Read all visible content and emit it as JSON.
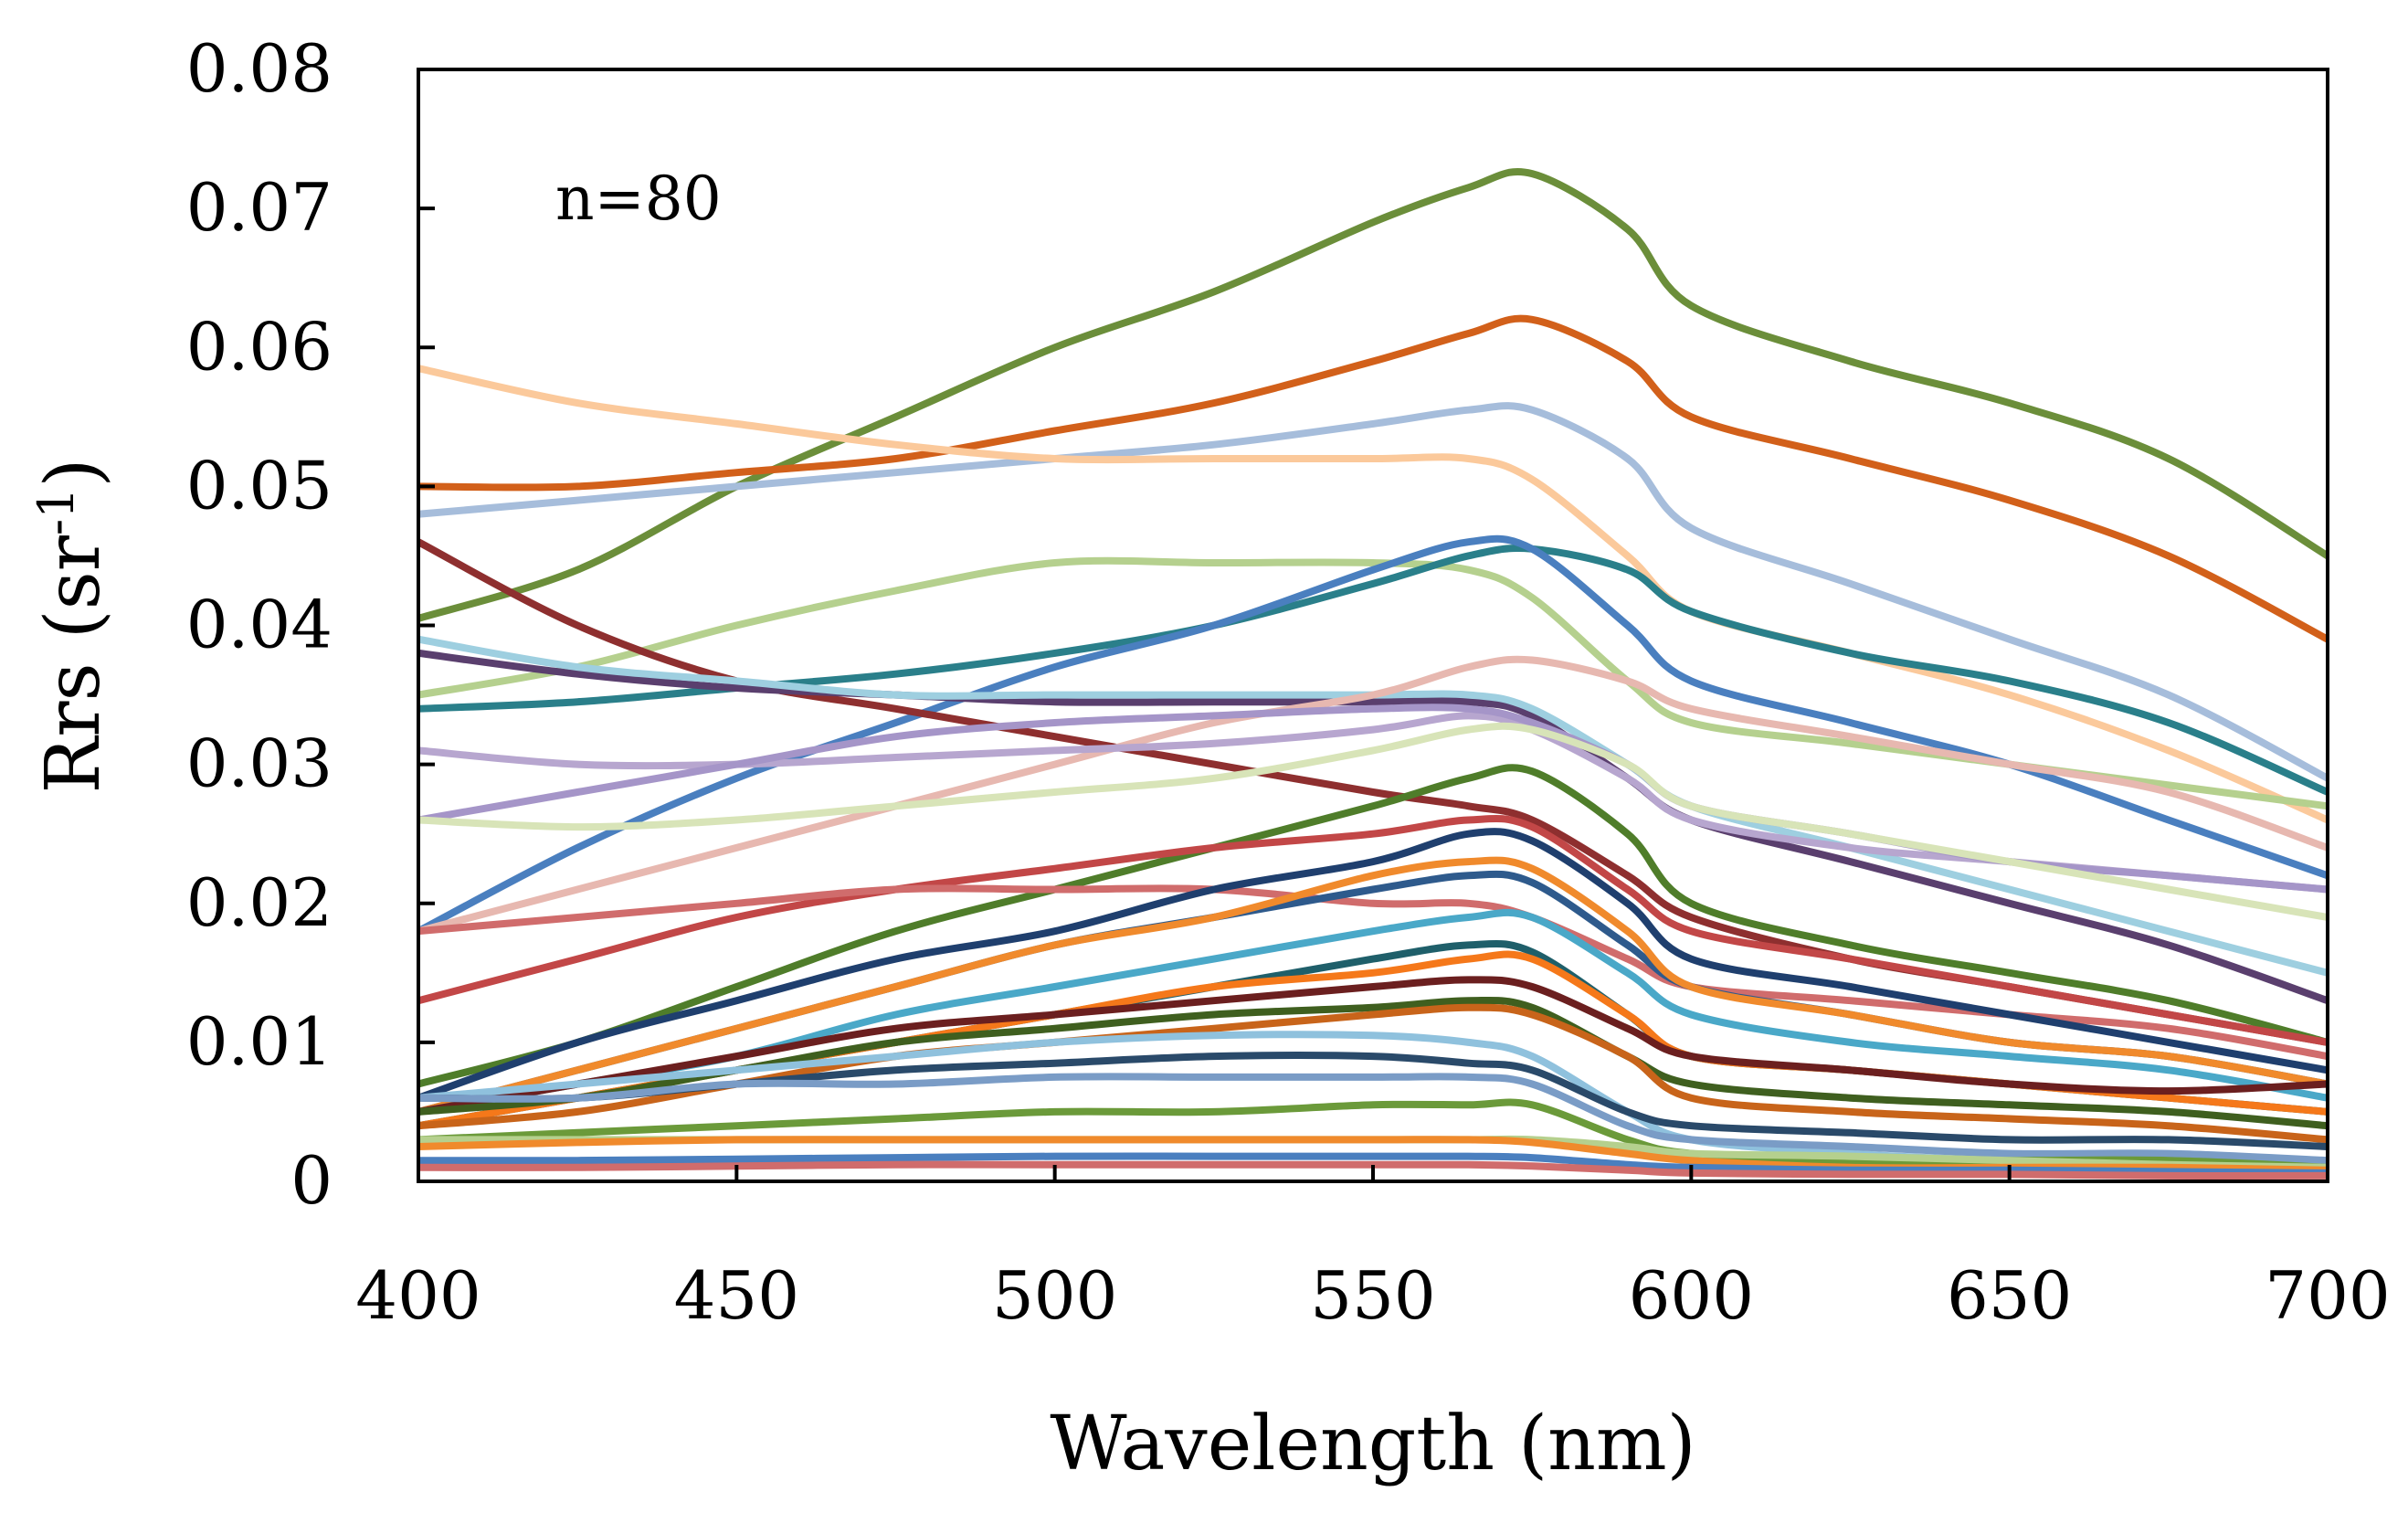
{
  "chart_data": {
    "type": "line",
    "title": "",
    "xlabel": "Wavelength (nm)",
    "ylabel_main": "Rrs (sr",
    "ylabel_sup": "-1",
    "ylabel_close": ")",
    "xlim": [
      400,
      700
    ],
    "ylim": [
      0,
      0.08
    ],
    "grid": false,
    "legend": "none",
    "annotation": "n=80",
    "x_ticks": [
      "400",
      "450",
      "500",
      "550",
      "600",
      "650",
      "700"
    ],
    "y_ticks": [
      "0",
      "0.01",
      "0.02",
      "0.03",
      "0.04",
      "0.05",
      "0.06",
      "0.07",
      "0.08"
    ],
    "x": [
      400,
      425,
      450,
      475,
      500,
      525,
      550,
      565,
      575,
      590,
      600,
      625,
      650,
      675,
      700
    ],
    "series": [
      {
        "color": "#6b8e3a",
        "values": [
          0.0405,
          0.044,
          0.05,
          0.055,
          0.06,
          0.064,
          0.069,
          0.0715,
          0.0725,
          0.0685,
          0.063,
          0.059,
          0.056,
          0.052,
          0.045
        ]
      },
      {
        "color": "#d2601a",
        "values": [
          0.05,
          0.05,
          0.051,
          0.052,
          0.054,
          0.056,
          0.059,
          0.061,
          0.062,
          0.059,
          0.055,
          0.052,
          0.049,
          0.045,
          0.039
        ]
      },
      {
        "color": "#a6bddb",
        "values": [
          0.048,
          0.049,
          0.05,
          0.051,
          0.052,
          0.053,
          0.0545,
          0.0555,
          0.0555,
          0.052,
          0.047,
          0.043,
          0.039,
          0.035,
          0.029
        ]
      },
      {
        "color": "#fbc99b",
        "values": [
          0.0585,
          0.056,
          0.0545,
          0.053,
          0.052,
          0.052,
          0.052,
          0.052,
          0.0505,
          0.045,
          0.041,
          0.038,
          0.035,
          0.031,
          0.026
        ]
      },
      {
        "color": "#b5d08e",
        "values": [
          0.035,
          0.037,
          0.04,
          0.0425,
          0.0445,
          0.0445,
          0.0445,
          0.044,
          0.042,
          0.036,
          0.033,
          0.0315,
          0.03,
          0.0285,
          0.027
        ]
      },
      {
        "color": "#2a7f8a",
        "values": [
          0.034,
          0.0345,
          0.0355,
          0.0365,
          0.038,
          0.04,
          0.043,
          0.045,
          0.0455,
          0.044,
          0.041,
          0.038,
          0.036,
          0.033,
          0.028
        ]
      },
      {
        "color": "#4a7fbf",
        "values": [
          0.018,
          0.024,
          0.029,
          0.033,
          0.037,
          0.04,
          0.044,
          0.046,
          0.0455,
          0.04,
          0.036,
          0.033,
          0.03,
          0.026,
          0.022
        ]
      },
      {
        "color": "#8e2f2f",
        "values": [
          0.046,
          0.04,
          0.036,
          0.034,
          0.032,
          0.03,
          0.028,
          0.027,
          0.026,
          0.022,
          0.019,
          0.016,
          0.014,
          0.012,
          0.01
        ]
      },
      {
        "color": "#5a3f6e",
        "values": [
          0.038,
          0.0365,
          0.0355,
          0.035,
          0.0345,
          0.0345,
          0.0345,
          0.0345,
          0.0335,
          0.029,
          0.026,
          0.023,
          0.02,
          0.017,
          0.013
        ]
      },
      {
        "color": "#9ecfe0",
        "values": [
          0.039,
          0.037,
          0.036,
          0.035,
          0.035,
          0.035,
          0.035,
          0.035,
          0.034,
          0.03,
          0.027,
          0.024,
          0.021,
          0.018,
          0.015
        ]
      },
      {
        "color": "#e7b8b0",
        "values": [
          0.018,
          0.021,
          0.024,
          0.027,
          0.03,
          0.033,
          0.035,
          0.037,
          0.0375,
          0.036,
          0.034,
          0.032,
          0.03,
          0.028,
          0.024
        ]
      },
      {
        "color": "#b7a6cf",
        "values": [
          0.031,
          0.03,
          0.03,
          0.0305,
          0.031,
          0.0315,
          0.0325,
          0.0335,
          0.0325,
          0.029,
          0.026,
          0.024,
          0.023,
          0.022,
          0.021
        ]
      },
      {
        "color": "#a595c8",
        "values": [
          0.026,
          0.028,
          0.03,
          0.032,
          0.033,
          0.0335,
          0.034,
          0.034,
          0.033,
          0.03,
          0.027,
          0.025,
          0.023,
          0.022,
          0.021
        ]
      },
      {
        "color": "#d8e4b8",
        "values": [
          0.026,
          0.0255,
          0.026,
          0.027,
          0.028,
          0.029,
          0.031,
          0.0325,
          0.0325,
          0.03,
          0.027,
          0.025,
          0.023,
          0.021,
          0.019
        ]
      },
      {
        "color": "#4f7d2a",
        "values": [
          0.007,
          0.01,
          0.014,
          0.018,
          0.021,
          0.024,
          0.027,
          0.029,
          0.0295,
          0.025,
          0.02,
          0.017,
          0.015,
          0.013,
          0.01
        ]
      },
      {
        "color": "#c24747",
        "values": [
          0.013,
          0.016,
          0.019,
          0.021,
          0.0225,
          0.024,
          0.025,
          0.026,
          0.0255,
          0.021,
          0.018,
          0.016,
          0.014,
          0.012,
          0.01
        ]
      },
      {
        "color": "#d06c6c",
        "values": [
          0.018,
          0.019,
          0.02,
          0.021,
          0.021,
          0.021,
          0.02,
          0.02,
          0.019,
          0.016,
          0.014,
          0.013,
          0.012,
          0.011,
          0.009
        ]
      },
      {
        "color": "#1f3f6e",
        "values": [
          0.006,
          0.01,
          0.013,
          0.016,
          0.018,
          0.021,
          0.023,
          0.025,
          0.0245,
          0.02,
          0.016,
          0.014,
          0.012,
          0.01,
          0.008
        ]
      },
      {
        "color": "#2e5a8c",
        "values": [
          0.005,
          0.008,
          0.011,
          0.014,
          0.017,
          0.019,
          0.021,
          0.022,
          0.0215,
          0.017,
          0.014,
          0.012,
          0.01,
          0.009,
          0.007
        ]
      },
      {
        "color": "#f08a2c",
        "values": [
          0.005,
          0.008,
          0.011,
          0.014,
          0.017,
          0.019,
          0.022,
          0.023,
          0.0225,
          0.018,
          0.014,
          0.012,
          0.01,
          0.009,
          0.007
        ]
      },
      {
        "color": "#4aa8c8",
        "values": [
          0.005,
          0.007,
          0.009,
          0.012,
          0.014,
          0.016,
          0.018,
          0.019,
          0.019,
          0.015,
          0.012,
          0.01,
          0.009,
          0.008,
          0.006
        ]
      },
      {
        "color": "#1f5f6a",
        "values": [
          0.004,
          0.006,
          0.008,
          0.01,
          0.012,
          0.014,
          0.016,
          0.017,
          0.0165,
          0.012,
          0.009,
          0.008,
          0.007,
          0.006,
          0.005
        ]
      },
      {
        "color": "#f5781a",
        "values": [
          0.004,
          0.006,
          0.008,
          0.01,
          0.012,
          0.014,
          0.015,
          0.016,
          0.016,
          0.012,
          0.009,
          0.008,
          0.007,
          0.006,
          0.005
        ]
      },
      {
        "color": "#6b1f1f",
        "values": [
          0.005,
          0.007,
          0.009,
          0.011,
          0.012,
          0.013,
          0.014,
          0.0145,
          0.014,
          0.011,
          0.009,
          0.008,
          0.007,
          0.0065,
          0.007
        ]
      },
      {
        "color": "#3f5f1f",
        "values": [
          0.005,
          0.006,
          0.008,
          0.01,
          0.011,
          0.012,
          0.0125,
          0.013,
          0.0125,
          0.009,
          0.007,
          0.006,
          0.0055,
          0.005,
          0.004
        ]
      },
      {
        "color": "#c8641a",
        "values": [
          0.004,
          0.005,
          0.007,
          0.009,
          0.01,
          0.011,
          0.012,
          0.0125,
          0.012,
          0.009,
          0.006,
          0.005,
          0.0045,
          0.004,
          0.003
        ]
      },
      {
        "color": "#8fc1dd",
        "values": [
          0.006,
          0.007,
          0.008,
          0.009,
          0.01,
          0.0105,
          0.0105,
          0.01,
          0.009,
          0.005,
          0.003,
          0.002,
          0.0015,
          0.0015,
          0.001
        ]
      },
      {
        "color": "#2a4a6a",
        "values": [
          0.006,
          0.006,
          0.007,
          0.008,
          0.0085,
          0.009,
          0.009,
          0.0085,
          0.008,
          0.005,
          0.004,
          0.0035,
          0.003,
          0.003,
          0.0025
        ]
      },
      {
        "color": "#7a9cc6",
        "values": [
          0.006,
          0.006,
          0.007,
          0.007,
          0.0075,
          0.0075,
          0.0075,
          0.0075,
          0.007,
          0.004,
          0.003,
          0.0025,
          0.002,
          0.002,
          0.0015
        ]
      },
      {
        "color": "#6b9a3a",
        "values": [
          0.003,
          0.0035,
          0.004,
          0.0045,
          0.005,
          0.005,
          0.0055,
          0.0055,
          0.0055,
          0.003,
          0.002,
          0.0015,
          0.0015,
          0.0015,
          0.001
        ]
      },
      {
        "color": "#b5d08e",
        "values": [
          0.003,
          0.003,
          0.003,
          0.003,
          0.003,
          0.003,
          0.003,
          0.003,
          0.003,
          0.0025,
          0.002,
          0.0018,
          0.0015,
          0.0012,
          0.001
        ]
      },
      {
        "color": "#f08a2c",
        "values": [
          0.0025,
          0.0028,
          0.003,
          0.003,
          0.003,
          0.003,
          0.003,
          0.003,
          0.0028,
          0.002,
          0.0015,
          0.001,
          0.001,
          0.001,
          0.0008
        ]
      },
      {
        "color": "#4a7fbf",
        "values": [
          0.0015,
          0.0015,
          0.0016,
          0.0017,
          0.0018,
          0.0018,
          0.0018,
          0.0018,
          0.0017,
          0.0012,
          0.001,
          0.0008,
          0.0008,
          0.0007,
          0.0006
        ]
      },
      {
        "color": "#d06c6c",
        "values": [
          0.001,
          0.001,
          0.0011,
          0.0012,
          0.0012,
          0.0012,
          0.0012,
          0.0012,
          0.0011,
          0.0008,
          0.0006,
          0.0005,
          0.0005,
          0.0004,
          0.0004
        ]
      }
    ]
  }
}
